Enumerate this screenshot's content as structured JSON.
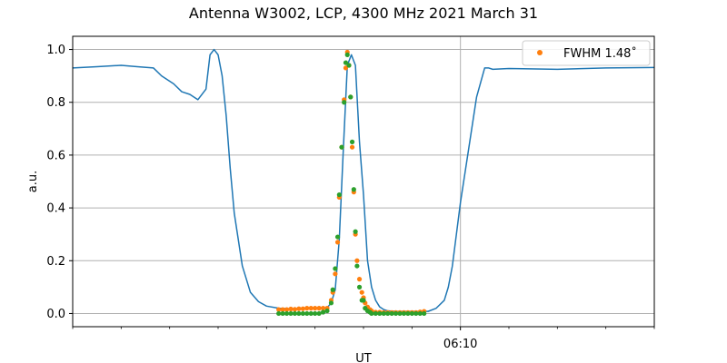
{
  "chart_data": {
    "type": "line",
    "title": "Antenna W3002, LCP, 4300 MHz 2021 March 31",
    "xlabel": "UT",
    "ylabel": "a.u.",
    "ylim": [
      -0.05,
      1.05
    ],
    "yticks": [
      0.0,
      0.2,
      0.4,
      0.6,
      0.8,
      1.0
    ],
    "yticklabels": [
      "0.0",
      "0.2",
      "0.4",
      "0.6",
      "0.8",
      "1.0"
    ],
    "xlim": [
      "06:02",
      "06:14"
    ],
    "xticks_minor": [
      "06:02",
      "06:03",
      "06:04",
      "06:05",
      "06:06",
      "06:07",
      "06:08",
      "06:09",
      "06:10",
      "06:11",
      "06:12",
      "06:13",
      "06:14"
    ],
    "xticks_major": [
      "06:10"
    ],
    "xticklabels": [
      "06:10"
    ],
    "grid": true,
    "legend_position": "top-right",
    "colors": {
      "line": "#1f77b4",
      "dots_orange": "#ff7f0e",
      "dots_green": "#2ca02c",
      "grid": "#b0b0b0"
    },
    "series": [
      {
        "kind": "line",
        "color": "#1f77b4",
        "x": [
          "06:02:00",
          "06:02:30",
          "06:03:00",
          "06:03:20",
          "06:03:40",
          "06:03:50",
          "06:04:05",
          "06:04:15",
          "06:04:25",
          "06:04:35",
          "06:04:45",
          "06:04:50",
          "06:04:55",
          "06:05:00",
          "06:05:05",
          "06:05:10",
          "06:05:15",
          "06:05:20",
          "06:05:30",
          "06:05:40",
          "06:05:50",
          "06:06:00",
          "06:06:15",
          "06:06:30",
          "06:06:45",
          "06:07:00",
          "06:07:15",
          "06:07:20",
          "06:07:25",
          "06:07:30",
          "06:07:35",
          "06:07:40",
          "06:07:45",
          "06:07:50",
          "06:07:55",
          "06:08:00",
          "06:08:05",
          "06:08:10",
          "06:08:15",
          "06:08:20",
          "06:08:25",
          "06:08:30",
          "06:08:40",
          "06:09:00",
          "06:09:20",
          "06:09:30",
          "06:09:40",
          "06:09:45",
          "06:09:50",
          "06:09:55",
          "06:10:00",
          "06:10:10",
          "06:10:20",
          "06:10:30",
          "06:10:35",
          "06:10:40",
          "06:11:00",
          "06:12:00",
          "06:13:00",
          "06:14:00"
        ],
        "y": [
          0.93,
          0.935,
          0.94,
          0.935,
          0.93,
          0.9,
          0.87,
          0.84,
          0.83,
          0.81,
          0.85,
          0.98,
          1.0,
          0.98,
          0.9,
          0.75,
          0.55,
          0.38,
          0.18,
          0.08,
          0.045,
          0.028,
          0.02,
          0.018,
          0.018,
          0.018,
          0.022,
          0.04,
          0.09,
          0.28,
          0.62,
          0.94,
          0.98,
          0.94,
          0.65,
          0.45,
          0.2,
          0.1,
          0.05,
          0.025,
          0.015,
          0.01,
          0.008,
          0.008,
          0.008,
          0.02,
          0.05,
          0.1,
          0.18,
          0.3,
          0.42,
          0.62,
          0.82,
          0.93,
          0.93,
          0.925,
          0.928,
          0.925,
          0.93,
          0.932
        ]
      },
      {
        "kind": "scatter",
        "name": "FWHM 1.48$^\\circ$",
        "label": "FWHM 1.48˚",
        "color": "#ff7f0e",
        "x": [
          "06:06:15",
          "06:06:20",
          "06:06:25",
          "06:06:30",
          "06:06:35",
          "06:06:40",
          "06:06:45",
          "06:06:50",
          "06:06:55",
          "06:07:00",
          "06:07:05",
          "06:07:10",
          "06:07:15",
          "06:07:20",
          "06:07:22",
          "06:07:25",
          "06:07:28",
          "06:07:30",
          "06:07:33",
          "06:07:36",
          "06:07:38",
          "06:07:40",
          "06:07:42",
          "06:07:44",
          "06:07:46",
          "06:07:48",
          "06:07:50",
          "06:07:52",
          "06:07:55",
          "06:07:58",
          "06:08:00",
          "06:08:02",
          "06:08:05",
          "06:08:08",
          "06:08:10",
          "06:08:15",
          "06:08:20",
          "06:08:25",
          "06:08:30",
          "06:08:35",
          "06:08:40",
          "06:08:45",
          "06:08:50",
          "06:08:55",
          "06:09:00",
          "06:09:05",
          "06:09:10",
          "06:09:15"
        ],
        "y": [
          0.015,
          0.015,
          0.015,
          0.017,
          0.016,
          0.018,
          0.018,
          0.02,
          0.02,
          0.02,
          0.02,
          0.02,
          0.02,
          0.05,
          0.08,
          0.15,
          0.27,
          0.44,
          0.63,
          0.81,
          0.93,
          0.99,
          0.94,
          0.82,
          0.63,
          0.46,
          0.3,
          0.2,
          0.13,
          0.08,
          0.06,
          0.04,
          0.025,
          0.015,
          0.01,
          0.005,
          0.005,
          0.004,
          0.004,
          0.004,
          0.004,
          0.004,
          0.004,
          0.004,
          0.004,
          0.004,
          0.006,
          0.008
        ]
      },
      {
        "kind": "scatter",
        "color": "#2ca02c",
        "x": [
          "06:06:15",
          "06:06:20",
          "06:06:25",
          "06:06:30",
          "06:06:35",
          "06:06:40",
          "06:06:45",
          "06:06:50",
          "06:06:55",
          "06:07:00",
          "06:07:05",
          "06:07:10",
          "06:07:15",
          "06:07:20",
          "06:07:22",
          "06:07:25",
          "06:07:28",
          "06:07:30",
          "06:07:33",
          "06:07:36",
          "06:07:38",
          "06:07:40",
          "06:07:42",
          "06:07:44",
          "06:07:46",
          "06:07:48",
          "06:07:50",
          "06:07:52",
          "06:07:55",
          "06:07:58",
          "06:08:00",
          "06:08:02",
          "06:08:05",
          "06:08:08",
          "06:08:10",
          "06:08:15",
          "06:08:20",
          "06:08:25",
          "06:08:30",
          "06:08:35",
          "06:08:40",
          "06:08:45",
          "06:08:50",
          "06:08:55",
          "06:09:00",
          "06:09:05",
          "06:09:10",
          "06:09:15"
        ],
        "y": [
          0.0,
          0.0,
          0.0,
          0.0,
          0.0,
          0.0,
          0.0,
          0.0,
          0.0,
          0.0,
          0.0,
          0.005,
          0.01,
          0.04,
          0.09,
          0.17,
          0.29,
          0.45,
          0.63,
          0.8,
          0.95,
          0.98,
          0.94,
          0.82,
          0.65,
          0.47,
          0.31,
          0.18,
          0.1,
          0.05,
          0.05,
          0.02,
          0.01,
          0.005,
          0.0,
          0.0,
          0.0,
          0.0,
          0.0,
          0.0,
          0.0,
          0.0,
          0.0,
          0.0,
          0.0,
          0.0,
          0.0,
          0.0
        ]
      }
    ]
  }
}
